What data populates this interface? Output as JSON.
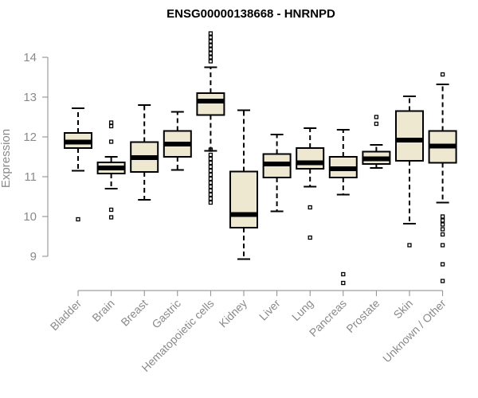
{
  "chart_data": {
    "type": "boxplot",
    "title": "ENSG00000138668 - HNRNPD",
    "xlabel": "",
    "ylabel": "Expression",
    "ylim": [
      8.1,
      14.9
    ],
    "yticks": [
      9,
      10,
      11,
      12,
      13,
      14
    ],
    "grid": false,
    "box_color": "#efe8d0",
    "categories": [
      "Bladder",
      "Brain",
      "Breast",
      "Gastric",
      "Hematopoietic cells",
      "Kidney",
      "Liver",
      "Lung",
      "Pancreas",
      "Prostate",
      "Skin",
      "Unknown / Other"
    ],
    "boxes": [
      {
        "whisker_low": 11.15,
        "q1": 11.72,
        "median": 11.87,
        "q3": 12.1,
        "whisker_high": 12.72,
        "outliers": [
          9.93
        ]
      },
      {
        "whisker_low": 10.7,
        "q1": 11.08,
        "median": 11.22,
        "q3": 11.36,
        "whisker_high": 11.5,
        "outliers": [
          9.98,
          10.17,
          11.88,
          12.27,
          12.36
        ]
      },
      {
        "whisker_low": 10.42,
        "q1": 11.12,
        "median": 11.48,
        "q3": 11.87,
        "whisker_high": 12.8,
        "outliers": []
      },
      {
        "whisker_low": 11.17,
        "q1": 11.5,
        "median": 11.82,
        "q3": 12.15,
        "whisker_high": 12.63,
        "outliers": []
      },
      {
        "whisker_low": 11.65,
        "q1": 12.55,
        "median": 12.9,
        "q3": 13.1,
        "whisker_high": 13.75,
        "outliers": [
          10.35,
          10.45,
          10.55,
          10.65,
          10.75,
          10.85,
          10.95,
          11.05,
          11.15,
          11.25,
          11.35,
          11.45,
          11.55,
          11.68,
          13.9,
          14.0,
          14.1,
          14.2,
          14.3,
          14.4,
          14.5,
          14.6
        ]
      },
      {
        "whisker_low": 8.93,
        "q1": 9.72,
        "median": 10.05,
        "q3": 11.13,
        "whisker_high": 12.67,
        "outliers": []
      },
      {
        "whisker_low": 10.13,
        "q1": 10.98,
        "median": 11.32,
        "q3": 11.57,
        "whisker_high": 12.06,
        "outliers": []
      },
      {
        "whisker_low": 10.75,
        "q1": 11.2,
        "median": 11.35,
        "q3": 11.72,
        "whisker_high": 12.22,
        "outliers": [
          9.47,
          10.23
        ]
      },
      {
        "whisker_low": 10.55,
        "q1": 10.98,
        "median": 11.2,
        "q3": 11.5,
        "whisker_high": 12.18,
        "outliers": [
          8.33,
          8.55
        ]
      },
      {
        "whisker_low": 11.22,
        "q1": 11.32,
        "median": 11.45,
        "q3": 11.63,
        "whisker_high": 11.8,
        "outliers": [
          12.33,
          12.5
        ]
      },
      {
        "whisker_low": 9.82,
        "q1": 11.4,
        "median": 11.92,
        "q3": 12.65,
        "whisker_high": 13.02,
        "outliers": [
          9.28
        ]
      },
      {
        "whisker_low": 10.35,
        "q1": 11.35,
        "median": 11.77,
        "q3": 12.15,
        "whisker_high": 13.32,
        "outliers": [
          8.38,
          8.8,
          9.28,
          9.55,
          9.68,
          9.8,
          9.9,
          10.0,
          13.57
        ]
      }
    ]
  }
}
